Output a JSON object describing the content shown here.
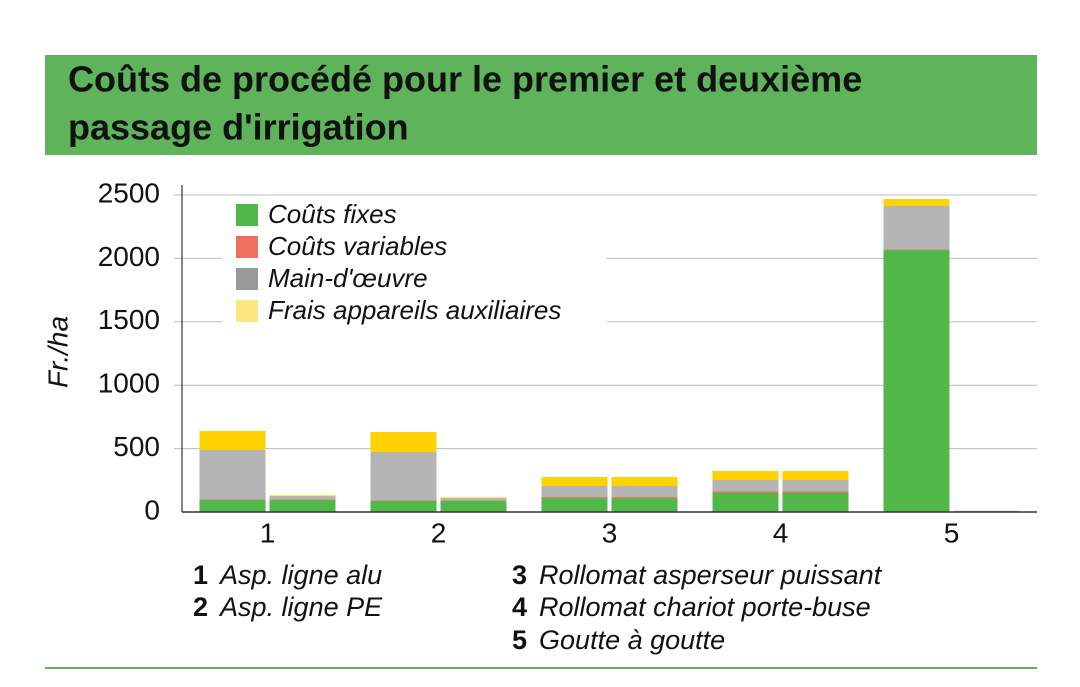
{
  "chart_data": {
    "type": "grouped-stacked-bar",
    "title_lines": [
      "Coûts de procédé pour le premier et deuxième",
      "passage d'irrigation"
    ],
    "y_label": "Fr./ha",
    "categories": [
      "1",
      "2",
      "3",
      "4",
      "5"
    ],
    "series": [
      {
        "name": "Coûts fixes",
        "color": "#4fb848",
        "values": [
          [
            95,
            95
          ],
          [
            87,
            87
          ],
          [
            110,
            110
          ],
          [
            150,
            150
          ],
          [
            2066,
            0
          ]
        ]
      },
      {
        "name": "Coûts variables",
        "color": "#f07060",
        "values": [
          [
            4,
            4
          ],
          [
            5,
            4
          ],
          [
            8,
            8
          ],
          [
            12,
            12
          ],
          [
            5,
            0
          ]
        ]
      },
      {
        "name": "Main-d'œuvre",
        "color": "#b4b4b4",
        "values": [
          [
            390,
            27
          ],
          [
            381,
            19
          ],
          [
            87,
            87
          ],
          [
            90,
            90
          ],
          [
            342,
            10
          ]
        ]
      },
      {
        "name": "Frais appareils auxiliaires",
        "color": "#ffd200",
        "values": [
          [
            150,
            5
          ],
          [
            158,
            5
          ],
          [
            71,
            71
          ],
          [
            71,
            71
          ],
          [
            55,
            0
          ]
        ]
      }
    ],
    "legend_colors": [
      "#4fb848",
      "#f07060",
      "#999999",
      "#ffe680"
    ],
    "ylim": [
      0,
      2500
    ],
    "yticks": [
      0,
      500,
      1000,
      1500,
      2000,
      2500
    ],
    "grid": true,
    "legend": "top-left",
    "notes": [
      {
        "number": "1",
        "text": "Asp. ligne alu"
      },
      {
        "number": "2",
        "text": "Asp. ligne PE"
      },
      {
        "number": "3",
        "text": "Rollomat asperseur puissant"
      },
      {
        "number": "4",
        "text": "Rollomat chariot porte-buse"
      },
      {
        "number": "5",
        "text": "Goutte à goutte"
      }
    ]
  }
}
